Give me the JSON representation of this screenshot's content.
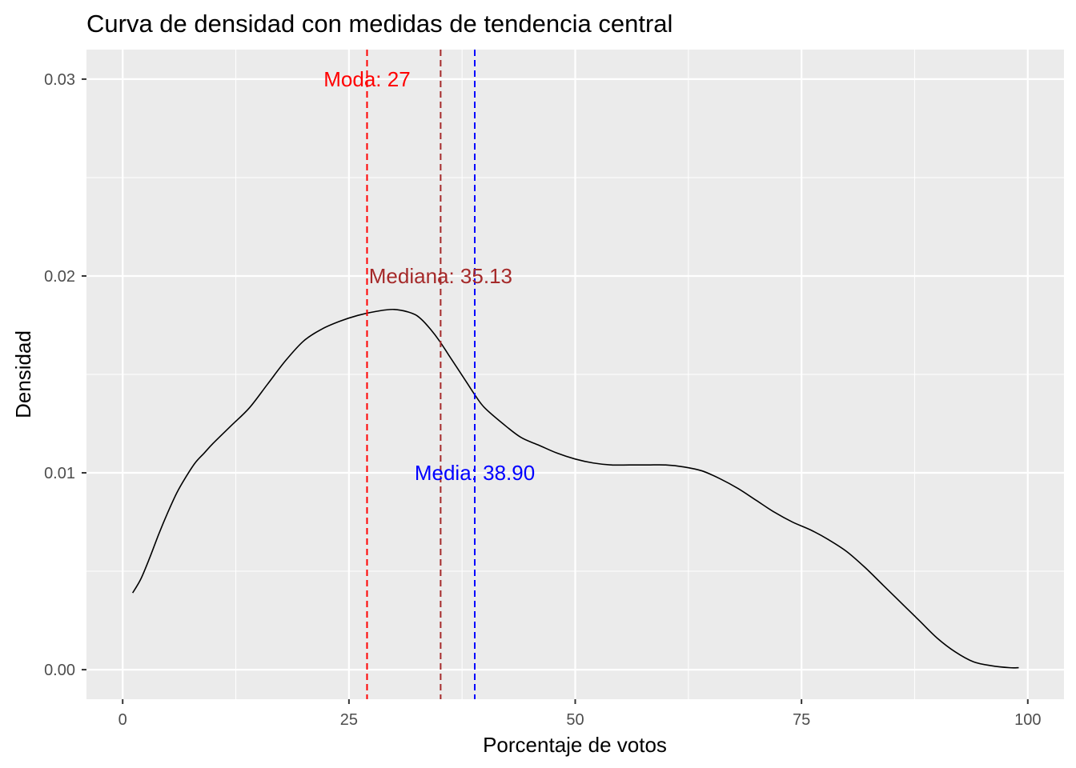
{
  "chart_data": {
    "type": "line",
    "title": "Curva de densidad con medidas de tendencia central",
    "xlabel": "Porcentaje de votos",
    "ylabel": "Densidad",
    "xlim": [
      -4,
      104
    ],
    "ylim": [
      -0.0015,
      0.0315
    ],
    "x_ticks": [
      0,
      25,
      50,
      75,
      100
    ],
    "x_tick_labels": [
      "0",
      "25",
      "50",
      "75",
      "100"
    ],
    "y_ticks": [
      0,
      0.01,
      0.02,
      0.03
    ],
    "y_tick_labels": [
      "0.00",
      "0.01",
      "0.02",
      "0.03"
    ],
    "grid": true,
    "background": "#ebebeb",
    "series": [
      {
        "color": "#000000",
        "x": [
          1.1,
          2,
          3,
          4,
          5,
          6,
          7,
          8,
          9,
          10,
          12,
          14,
          16,
          18,
          20,
          22,
          24,
          26,
          28,
          30,
          32,
          33,
          34,
          35,
          36,
          37,
          38,
          39,
          40,
          42,
          44,
          46,
          48,
          50,
          52,
          54,
          56,
          58,
          60,
          62,
          64,
          66,
          68,
          70,
          72,
          74,
          76,
          78,
          80,
          82,
          84,
          86,
          88,
          90,
          92,
          94,
          96,
          98,
          99
        ],
        "y": [
          0.0039,
          0.0046,
          0.0057,
          0.0069,
          0.008,
          0.009,
          0.0098,
          0.0105,
          0.011,
          0.0115,
          0.0124,
          0.0133,
          0.0145,
          0.0157,
          0.0167,
          0.0173,
          0.0177,
          0.018,
          0.0182,
          0.0183,
          0.0181,
          0.0178,
          0.0173,
          0.0167,
          0.016,
          0.0153,
          0.0146,
          0.0139,
          0.0133,
          0.0125,
          0.0118,
          0.0114,
          0.011,
          0.0107,
          0.0105,
          0.0104,
          0.0104,
          0.0104,
          0.0104,
          0.0103,
          0.0101,
          0.0097,
          0.0092,
          0.0086,
          0.008,
          0.0075,
          0.0071,
          0.0066,
          0.006,
          0.0052,
          0.0043,
          0.0034,
          0.0025,
          0.0016,
          0.0009,
          0.0004,
          0.0002,
          0.0001,
          0.0001
        ]
      }
    ],
    "vlines": [
      {
        "x": 27,
        "color": "#ff0000",
        "dashed": true
      },
      {
        "x": 35.13,
        "color": "#a52a2a",
        "dashed": true
      },
      {
        "x": 38.9,
        "color": "#0000ff",
        "dashed": true
      }
    ],
    "annotations": [
      {
        "text": "Moda: 27",
        "x": 27,
        "y": 0.03,
        "color": "#ff0000"
      },
      {
        "text": "Mediana: 35.13",
        "x": 35.13,
        "y": 0.02,
        "color": "#a52a2a"
      },
      {
        "text": "Media: 38.90",
        "x": 38.9,
        "y": 0.01,
        "color": "#0000ff"
      }
    ]
  }
}
